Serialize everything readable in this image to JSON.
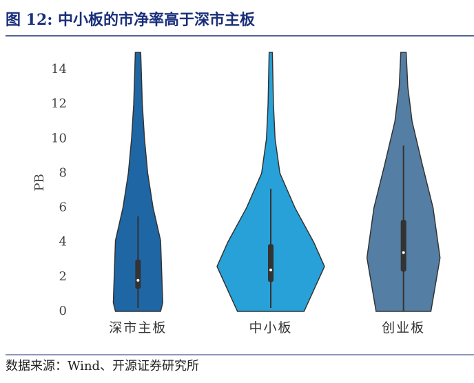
{
  "header": {
    "title": "图 12:  中小板的市净率高于深市主板"
  },
  "chart_data": {
    "type": "violin",
    "ylabel": "PB",
    "ylim": [
      0,
      15
    ],
    "yticks": [
      0,
      2,
      4,
      6,
      8,
      10,
      12,
      14
    ],
    "categories": [
      "深市主板",
      "中小板",
      "创业板"
    ],
    "series": [
      {
        "color": "#1f66a5",
        "density_y": [
          0,
          0.5,
          4.1,
          6,
          8,
          10,
          12,
          15
        ],
        "density": [
          0.42,
          0.46,
          0.42,
          0.28,
          0.18,
          0.12,
          0.08,
          0.05
        ],
        "whisker_low": 0.2,
        "q1": 1.3,
        "median": 1.8,
        "q3": 3.0,
        "whisker_high": 5.5
      },
      {
        "color": "#27a1d8",
        "density_y": [
          0,
          2.6,
          4,
          6,
          8,
          10,
          12,
          15
        ],
        "density": [
          0.62,
          1.0,
          0.8,
          0.45,
          0.17,
          0.08,
          0.05,
          0.03
        ],
        "whisker_low": 0.2,
        "q1": 1.7,
        "median": 2.4,
        "q3": 3.9,
        "whisker_high": 7.1
      },
      {
        "color": "#547ea3",
        "density_y": [
          0,
          3.1,
          6,
          8.5,
          11,
          13,
          15
        ],
        "density": [
          0.51,
          0.68,
          0.55,
          0.35,
          0.16,
          0.08,
          0.05
        ],
        "whisker_low": 0,
        "q1": 2.3,
        "median": 3.4,
        "q3": 5.3,
        "whisker_high": 9.6
      }
    ]
  },
  "footer": {
    "source": "数据来源：Wind、开源证券研究所"
  }
}
